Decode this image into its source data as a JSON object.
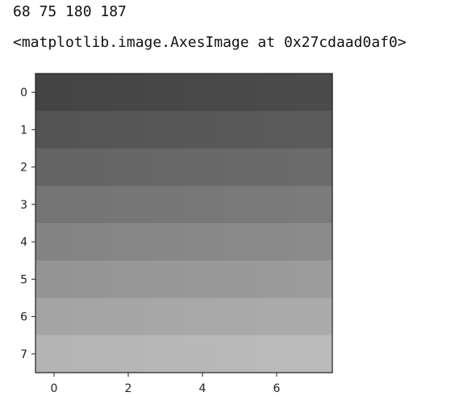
{
  "output": {
    "line1": "68 75 180 187",
    "line2": "<matplotlib.image.AxesImage at 0x27cdaad0af0>"
  },
  "chart_data": {
    "type": "heatmap",
    "colormap": "gray",
    "rows": 8,
    "cols": 8,
    "values": [
      [
        68,
        69,
        70,
        71,
        72,
        73,
        74,
        75
      ],
      [
        84,
        85,
        86,
        87,
        88,
        89,
        90,
        91
      ],
      [
        100,
        101,
        102,
        103,
        104,
        105,
        106,
        107
      ],
      [
        116,
        117,
        118,
        119,
        120,
        121,
        122,
        123
      ],
      [
        132,
        133,
        134,
        135,
        136,
        137,
        138,
        139
      ],
      [
        148,
        149,
        150,
        151,
        152,
        153,
        154,
        155
      ],
      [
        164,
        165,
        166,
        167,
        168,
        169,
        170,
        171
      ],
      [
        180,
        181,
        182,
        183,
        184,
        185,
        186,
        187
      ]
    ],
    "xticks": [
      "0",
      "2",
      "4",
      "6"
    ],
    "yticks": [
      "0",
      "1",
      "2",
      "3",
      "4",
      "5",
      "6",
      "7"
    ],
    "grid": false,
    "title": "",
    "xlabel": "",
    "ylabel": ""
  }
}
